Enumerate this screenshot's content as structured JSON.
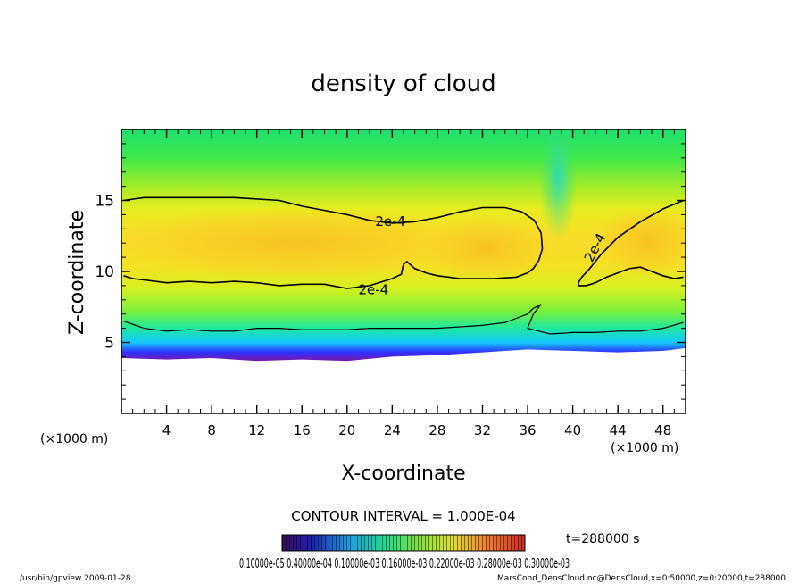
{
  "chart_data": {
    "type": "heatmap",
    "title": "density of cloud",
    "xlabel": "X-coordinate",
    "ylabel": "Z-coordinate",
    "x_unit_label": "(×1000 m)",
    "y_unit_label": "(×1000 m)",
    "xlim": [
      0,
      50
    ],
    "ylim": [
      0,
      20
    ],
    "x_ticks": [
      4,
      8,
      12,
      16,
      20,
      24,
      28,
      32,
      36,
      40,
      44,
      48
    ],
    "x_tick_labels": [
      "4",
      "8",
      "12",
      "16",
      "20",
      "24",
      "28",
      "32",
      "36",
      "40",
      "44",
      "48"
    ],
    "y_ticks": [
      5,
      10,
      15
    ],
    "y_tick_labels": [
      "5",
      "10",
      "15"
    ],
    "contour_interval_text": "CONTOUR INTERVAL = 1.000E-04",
    "contour_label": "2e-4",
    "time_text": "t=288000  s",
    "colorbar_labels_text": "0.10000e-05 0.40000e-04 0.10000e-03 0.16000e-03 0.22000e-03 0.28000e-03 0.30000e-03",
    "cloud_base_profile": {
      "x": [
        0,
        4,
        8,
        12,
        16,
        20,
        24,
        28,
        32,
        36,
        40,
        44,
        48,
        50
      ],
      "z": [
        3.9,
        3.8,
        3.9,
        3.7,
        3.8,
        3.7,
        4.0,
        4.1,
        4.3,
        4.5,
        4.4,
        4.3,
        4.4,
        4.6
      ]
    },
    "contour_2e4_main": {
      "x": [
        0.2,
        2,
        5,
        10,
        14,
        16,
        18,
        20,
        22,
        24,
        26,
        28,
        30,
        32,
        34,
        35.5,
        36.6,
        37.2,
        37.3,
        37.0,
        36.5,
        36.0,
        35,
        33,
        30,
        28,
        27,
        26,
        25.3,
        25.0,
        24.8,
        24,
        22,
        20,
        18,
        16,
        14,
        12,
        10,
        8,
        6,
        4,
        2,
        1,
        0.2
      ],
      "z": [
        15.0,
        15.2,
        15.2,
        15.2,
        15.0,
        14.6,
        14.3,
        14.0,
        13.6,
        13.4,
        13.5,
        13.8,
        14.2,
        14.5,
        14.5,
        14.2,
        13.6,
        12.7,
        11.6,
        10.8,
        10.2,
        9.9,
        9.6,
        9.5,
        9.5,
        9.7,
        9.9,
        10.2,
        10.7,
        10.5,
        9.8,
        9.5,
        9.0,
        8.8,
        9.1,
        9.1,
        9.0,
        9.2,
        9.3,
        9.2,
        9.3,
        9.2,
        9.4,
        9.5,
        9.7
      ]
    },
    "contour_2e4_right": {
      "x": [
        49.8,
        48,
        46,
        44,
        42.5,
        41.5,
        40.8,
        40.5,
        40.5,
        41.2,
        42,
        43,
        44,
        45,
        46,
        47,
        48,
        49,
        49.8
      ],
      "z": [
        15.0,
        14.4,
        13.5,
        12.4,
        11.2,
        10.2,
        9.6,
        9.2,
        9.0,
        9.0,
        9.2,
        9.6,
        9.9,
        10.2,
        10.3,
        10.0,
        9.7,
        9.5,
        9.6
      ]
    },
    "contour_low": {
      "x": [
        0.2,
        2,
        4,
        6,
        8,
        10,
        12,
        14,
        16,
        18,
        20,
        22,
        24,
        26,
        28,
        30,
        32,
        34,
        35,
        36,
        36.5,
        37,
        37.2,
        36.5,
        36.0,
        37,
        38,
        40,
        42,
        44,
        46,
        48,
        49.8
      ],
      "z": [
        6.5,
        6.0,
        5.8,
        5.9,
        5.8,
        5.8,
        6.0,
        6.0,
        5.9,
        5.9,
        5.9,
        6.0,
        6.0,
        6.0,
        6.0,
        6.1,
        6.2,
        6.4,
        6.7,
        7.0,
        7.4,
        7.6,
        7.7,
        7.0,
        6.0,
        5.8,
        5.6,
        5.7,
        5.7,
        5.8,
        5.8,
        6.0,
        6.4
      ]
    }
  },
  "footer": {
    "program": "/usr/bin/gpview   2009-01-28",
    "source": "MarsCond_DensCloud.nc@DensCloud,x=0:50000,z=0:20000,t=288000"
  }
}
